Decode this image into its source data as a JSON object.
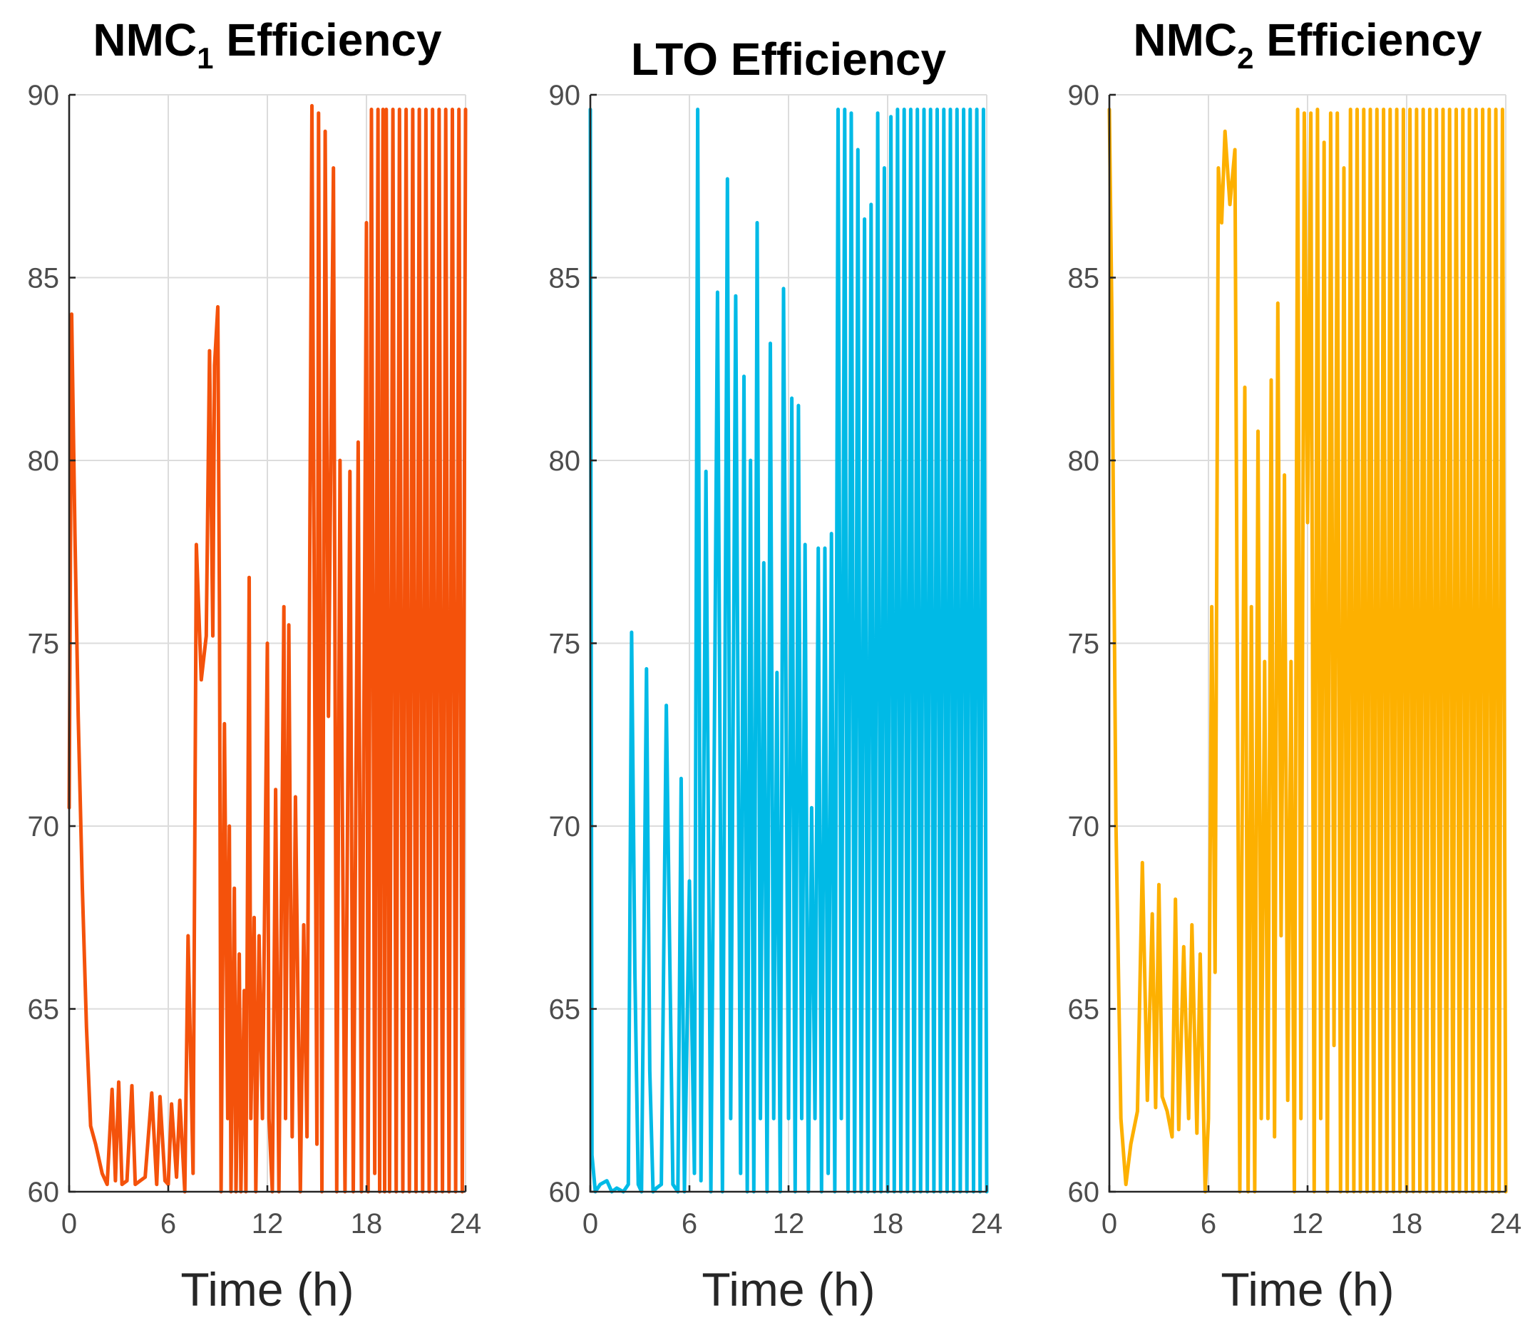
{
  "chart_data": [
    {
      "type": "line",
      "title": {
        "main": "NMC",
        "sub": "1",
        "rest": " Efficiency"
      },
      "xlabel": "Time (h)",
      "ylabel": "",
      "xlim": [
        0,
        24
      ],
      "ylim": [
        60,
        90
      ],
      "xticks": [
        0,
        6,
        12,
        18,
        24
      ],
      "yticks": [
        60,
        65,
        70,
        75,
        80,
        85,
        90
      ],
      "grid": true,
      "color": "#f4520b",
      "series": [
        {
          "x": [
            0,
            0.15,
            0.35,
            0.55,
            0.8,
            1.05,
            1.3,
            1.6,
            2.0,
            2.3,
            2.6,
            2.8,
            3.0,
            3.2,
            3.5,
            3.8,
            4.0,
            4.3,
            4.6,
            5.0,
            5.3,
            5.5,
            5.8,
            6.0,
            6.2,
            6.5,
            6.7,
            7.0,
            7.2,
            7.5,
            7.7,
            8.0,
            8.3,
            8.5,
            8.7,
            8.8,
            9.0,
            9.1,
            9.2,
            9.4,
            9.6,
            9.7,
            9.8,
            10.0,
            10.1,
            10.3,
            10.4,
            10.6,
            10.7,
            10.9,
            11.0,
            11.2,
            11.3,
            11.5,
            11.7,
            12.0,
            12.1,
            12.3,
            12.5,
            12.7,
            13.0,
            13.1,
            13.3,
            13.5,
            13.7,
            14.0,
            14.2,
            14.4,
            14.7,
            15.0,
            15.1,
            15.3,
            15.5,
            15.7,
            16.0,
            16.2,
            16.4,
            16.7,
            17.0,
            17.2,
            17.5,
            17.7,
            18.0,
            18.1,
            18.3,
            18.5,
            18.7,
            18.8,
            19.0,
            19.1,
            19.2,
            19.4,
            19.6,
            19.8,
            20.0,
            20.2,
            20.4,
            20.6,
            20.8,
            21.0,
            21.2,
            21.4,
            21.6,
            21.8,
            22.0,
            22.2,
            22.4,
            22.6,
            22.8,
            23.0,
            23.2,
            23.4,
            23.6,
            23.8,
            24.0
          ],
          "y": [
            70.5,
            84,
            78,
            73,
            68.3,
            64.5,
            61.8,
            61.3,
            60.5,
            60.2,
            62.8,
            60.3,
            63,
            60.2,
            60.3,
            62.9,
            60.2,
            60.3,
            60.4,
            62.7,
            60.2,
            62.6,
            60.3,
            60.2,
            62.4,
            60.4,
            62.5,
            60,
            67,
            60.5,
            77.7,
            74,
            75.2,
            83,
            75.2,
            82.6,
            84.2,
            76,
            60,
            72.8,
            62,
            70,
            60,
            68.3,
            60,
            66.5,
            60,
            65.5,
            60,
            76.8,
            62,
            67.5,
            60,
            67,
            62,
            75,
            62,
            60,
            71,
            60,
            76,
            62,
            75.5,
            61.5,
            70.8,
            60,
            67.3,
            61.5,
            89.7,
            61.3,
            89.5,
            60,
            89,
            73,
            88,
            60,
            80,
            60,
            79.7,
            60,
            80.5,
            60,
            86.5,
            60,
            89.6,
            60.5,
            89.6,
            60,
            89.6,
            60,
            89.6,
            60,
            89.6,
            60,
            89.6,
            60,
            89.6,
            60,
            89.6,
            60,
            89.6,
            60,
            89.6,
            60,
            89.6,
            60,
            89.6,
            60,
            89.6,
            60,
            89.6,
            60,
            89.6,
            60,
            89.6
          ]
        }
      ]
    },
    {
      "type": "line",
      "title": {
        "main": "LTO Efficiency",
        "sub": "",
        "rest": ""
      },
      "xlabel": "Time (h)",
      "ylabel": "",
      "xlim": [
        0,
        24
      ],
      "ylim": [
        60,
        90
      ],
      "xticks": [
        0,
        6,
        12,
        18,
        24
      ],
      "yticks": [
        60,
        65,
        70,
        75,
        80,
        85,
        90
      ],
      "grid": true,
      "color": "#00bae6",
      "series": [
        {
          "x": [
            0,
            0.1,
            0.3,
            0.6,
            1.0,
            1.3,
            1.6,
            2.0,
            2.3,
            2.5,
            2.7,
            2.9,
            3.1,
            3.4,
            3.6,
            3.8,
            4.0,
            4.3,
            4.6,
            5.0,
            5.3,
            5.5,
            5.7,
            6.0,
            6.3,
            6.5,
            6.7,
            7.0,
            7.3,
            7.5,
            7.7,
            8.0,
            8.3,
            8.5,
            8.8,
            9.1,
            9.3,
            9.5,
            9.7,
            9.9,
            10.1,
            10.3,
            10.5,
            10.7,
            10.9,
            11.1,
            11.3,
            11.5,
            11.7,
            12.0,
            12.2,
            12.4,
            12.6,
            12.8,
            13.0,
            13.2,
            13.4,
            13.6,
            13.8,
            14.0,
            14.2,
            14.4,
            14.6,
            14.8,
            15.0,
            15.2,
            15.4,
            15.6,
            15.8,
            16.0,
            16.2,
            16.4,
            16.6,
            16.8,
            17.0,
            17.2,
            17.4,
            17.6,
            17.8,
            18.0,
            18.2,
            18.4,
            18.6,
            18.8,
            19.0,
            19.2,
            19.4,
            19.6,
            19.8,
            20.0,
            20.2,
            20.4,
            20.6,
            20.8,
            21.0,
            21.2,
            21.4,
            21.6,
            21.8,
            22.0,
            22.2,
            22.4,
            22.6,
            22.8,
            23.0,
            23.2,
            23.4,
            23.6,
            23.8,
            24.0
          ],
          "y": [
            89.6,
            61,
            60,
            60.2,
            60.3,
            60,
            60.1,
            60,
            60.2,
            75.3,
            66,
            60.2,
            60,
            74.3,
            63.3,
            60,
            60.1,
            60.2,
            73.3,
            60.2,
            60,
            71.3,
            60,
            68.5,
            60.5,
            89.6,
            60.3,
            79.7,
            60,
            72,
            84.6,
            60,
            87.7,
            62,
            84.5,
            60.5,
            82.3,
            60,
            80,
            60,
            86.5,
            62,
            77.2,
            60,
            83.2,
            62,
            74.2,
            60,
            84.7,
            62,
            81.7,
            60,
            81.5,
            62,
            77.7,
            60,
            70.5,
            62,
            77.6,
            60,
            77.6,
            60.5,
            78,
            60,
            89.6,
            62,
            89.6,
            60,
            89.5,
            60,
            88.5,
            60,
            86.6,
            60,
            87,
            60,
            89.5,
            60,
            88,
            60,
            89.4,
            60,
            89.6,
            60,
            89.6,
            60,
            89.6,
            60,
            89.6,
            60,
            89.6,
            60,
            89.6,
            60,
            89.6,
            60,
            89.6,
            60,
            89.6,
            60,
            89.6,
            60,
            89.6,
            60,
            89.6,
            60,
            89.6,
            60,
            89.6,
            60
          ]
        }
      ]
    },
    {
      "type": "line",
      "title": {
        "main": "NMC",
        "sub": "2",
        "rest": " Efficiency"
      },
      "xlabel": "Time (h)",
      "ylabel": "",
      "xlim": [
        0,
        24
      ],
      "ylim": [
        60,
        90
      ],
      "xticks": [
        0,
        6,
        12,
        18,
        24
      ],
      "yticks": [
        60,
        65,
        70,
        75,
        80,
        85,
        90
      ],
      "grid": true,
      "color": "#fdb000",
      "series": [
        {
          "x": [
            0,
            0.15,
            0.4,
            0.7,
            1.0,
            1.3,
            1.7,
            2.0,
            2.3,
            2.6,
            2.8,
            3.0,
            3.2,
            3.5,
            3.8,
            4.0,
            4.2,
            4.5,
            4.8,
            5.0,
            5.3,
            5.5,
            5.8,
            6.0,
            6.2,
            6.4,
            6.6,
            6.8,
            7.0,
            7.3,
            7.6,
            7.9,
            8.2,
            8.4,
            8.6,
            8.8,
            9.0,
            9.2,
            9.4,
            9.6,
            9.8,
            10.0,
            10.2,
            10.4,
            10.6,
            10.8,
            11.0,
            11.2,
            11.4,
            11.6,
            11.8,
            12.0,
            12.2,
            12.4,
            12.6,
            12.8,
            13.0,
            13.2,
            13.4,
            13.6,
            13.8,
            14.0,
            14.2,
            14.4,
            14.6,
            14.8,
            15.0,
            15.2,
            15.4,
            15.6,
            15.8,
            16.0,
            16.2,
            16.4,
            16.6,
            16.8,
            17.0,
            17.2,
            17.4,
            17.6,
            17.8,
            18.0,
            18.2,
            18.4,
            18.6,
            18.8,
            19.0,
            19.2,
            19.4,
            19.6,
            19.8,
            20.0,
            20.2,
            20.4,
            20.6,
            20.8,
            21.0,
            21.2,
            21.4,
            21.6,
            21.8,
            22.0,
            22.2,
            22.4,
            22.6,
            22.8,
            23.0,
            23.2,
            23.4,
            23.6,
            23.8,
            24.0
          ],
          "y": [
            89.6,
            84,
            70,
            62,
            60.2,
            61.3,
            62.2,
            69,
            62.5,
            67.6,
            62.3,
            68.4,
            62.6,
            62.2,
            61.5,
            68,
            61.7,
            66.7,
            62,
            67.3,
            61.6,
            66.5,
            60,
            62,
            76,
            66,
            88,
            86.5,
            89,
            87,
            88.5,
            60,
            82,
            60,
            76,
            60,
            80.8,
            62,
            74.5,
            62,
            82.2,
            61.5,
            84.3,
            67,
            79.6,
            62.5,
            74.5,
            60,
            89.6,
            62,
            89.5,
            78.3,
            89.5,
            60,
            89.6,
            62,
            88.7,
            60,
            89.5,
            64,
            89.5,
            60,
            88,
            60,
            89.6,
            60,
            89.6,
            60,
            89.6,
            60,
            89.6,
            60,
            89.6,
            60,
            89.6,
            60,
            89.6,
            60,
            89.6,
            60,
            89.6,
            60,
            89.6,
            60,
            89.6,
            60,
            89.6,
            60,
            89.6,
            60,
            89.6,
            60,
            89.6,
            60,
            89.6,
            60,
            89.6,
            60,
            89.6,
            60,
            89.6,
            60,
            89.6,
            60,
            89.6,
            60,
            89.6,
            60,
            89.6,
            60,
            89.6,
            60
          ]
        }
      ]
    }
  ]
}
